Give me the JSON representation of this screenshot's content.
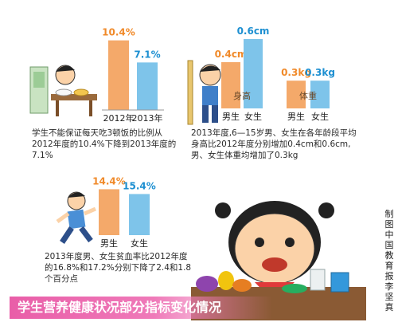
{
  "colors": {
    "orange": "#f4a96a",
    "blue": "#7ec4ea",
    "label_orange": "#f08a2a",
    "label_blue": "#1d8fd1",
    "banner": "#ef7ab9"
  },
  "chart_data": [
    {
      "type": "bar",
      "categories": [
        "2012年",
        "2013年"
      ],
      "values": [
        10.4,
        7.1
      ],
      "data_labels": [
        "10.4%",
        "7.1%"
      ],
      "unit": "%",
      "caption": "学生不能保证每天吃3顿饭的比例从2012年度的10.4%下降到2013年度的7.1%"
    },
    {
      "type": "bar",
      "groups": [
        {
          "label": "身高",
          "categories": [
            "男生",
            "女生"
          ],
          "values": [
            0.4,
            0.6
          ],
          "data_labels": [
            "0.4cm",
            "0.6cm"
          ]
        },
        {
          "label": "体重",
          "categories": [
            "男生",
            "女生"
          ],
          "values": [
            0.3,
            0.3
          ],
          "data_labels": [
            "0.3kg",
            "0.3kg"
          ]
        }
      ],
      "caption": "2013年度,6—15岁男、女生在各年龄段平均身高比2012年度分别增加0.4cm和0.6cm,男、女生体重均增加了0.3kg"
    },
    {
      "type": "bar",
      "categories": [
        "男生",
        "女生"
      ],
      "values": [
        14.4,
        15.4
      ],
      "data_labels": [
        "14.4%",
        "15.4%"
      ],
      "unit": "%",
      "caption": "2013年度男、女生贫血率比2012年度的16.8%和17.2%分别下降了2.4和1.8个百分点"
    }
  ],
  "banner": {
    "title": "学生营养健康状况部分指标变化情况"
  },
  "credit": {
    "text": "制图 中国教育报 李坚真"
  }
}
